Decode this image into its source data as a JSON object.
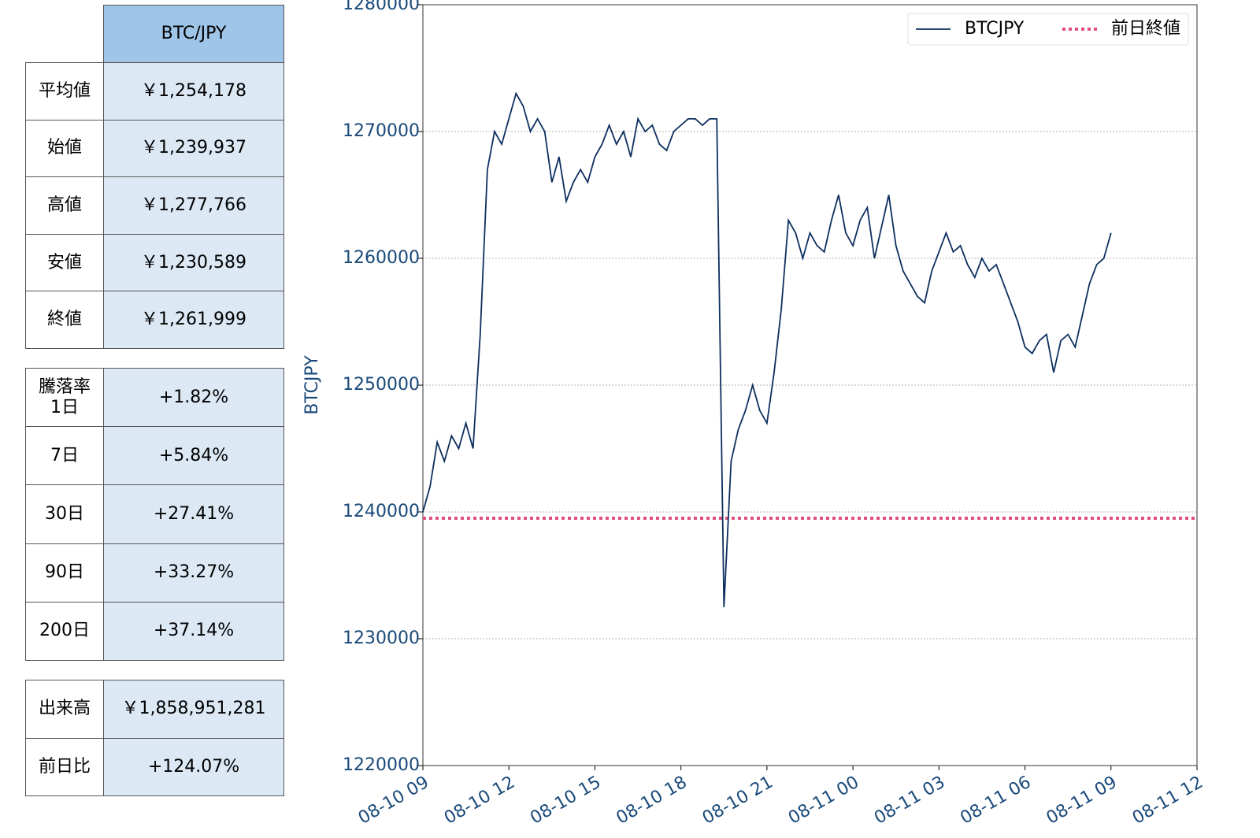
{
  "tables": [
    {
      "header": "BTC/JPY",
      "rows": [
        [
          "平均値",
          "￥1,254,178"
        ],
        [
          "始値",
          "￥1,239,937"
        ],
        [
          "高値",
          "￥1,277,766"
        ],
        [
          "安値",
          "￥1,230,589"
        ],
        [
          "終値",
          "￥1,261,999"
        ]
      ]
    },
    {
      "rows": [
        [
          "騰落率\n1日",
          "+1.82%"
        ],
        [
          "7日",
          "+5.84%"
        ],
        [
          "30日",
          "+27.41%"
        ],
        [
          "90日",
          "+33.27%"
        ],
        [
          "200日",
          "+37.14%"
        ]
      ]
    },
    {
      "rows": [
        [
          "出来高",
          "￥1,858,951,281"
        ],
        [
          "前日比",
          "+124.07%"
        ]
      ]
    }
  ],
  "chart_data": {
    "type": "line",
    "y_label": "BTCJPY",
    "x": [
      "08-10 09:00",
      "08-10 09:15",
      "08-10 09:30",
      "08-10 09:45",
      "08-10 10:00",
      "08-10 10:15",
      "08-10 10:30",
      "08-10 10:45",
      "08-10 11:00",
      "08-10 11:15",
      "08-10 11:30",
      "08-10 11:45",
      "08-10 12:00",
      "08-10 12:15",
      "08-10 12:30",
      "08-10 12:45",
      "08-10 13:00",
      "08-10 13:15",
      "08-10 13:30",
      "08-10 13:45",
      "08-10 14:00",
      "08-10 14:15",
      "08-10 14:30",
      "08-10 14:45",
      "08-10 15:00",
      "08-10 15:15",
      "08-10 15:30",
      "08-10 15:45",
      "08-10 16:00",
      "08-10 16:15",
      "08-10 16:30",
      "08-10 16:45",
      "08-10 17:00",
      "08-10 17:15",
      "08-10 17:30",
      "08-10 17:45",
      "08-10 18:00",
      "08-10 18:15",
      "08-10 18:30",
      "08-10 18:45",
      "08-10 19:00",
      "08-10 19:15",
      "08-10 19:30",
      "08-10 19:45",
      "08-10 20:00",
      "08-10 20:15",
      "08-10 20:30",
      "08-10 20:45",
      "08-10 21:00",
      "08-10 21:15",
      "08-10 21:30",
      "08-10 21:45",
      "08-10 22:00",
      "08-10 22:15",
      "08-10 22:30",
      "08-10 22:45",
      "08-10 23:00",
      "08-10 23:15",
      "08-10 23:30",
      "08-10 23:45",
      "08-11 00:00",
      "08-11 00:15",
      "08-11 00:30",
      "08-11 00:45",
      "08-11 01:00",
      "08-11 01:15",
      "08-11 01:30",
      "08-11 01:45",
      "08-11 02:00",
      "08-11 02:15",
      "08-11 02:30",
      "08-11 02:45",
      "08-11 03:00",
      "08-11 03:15",
      "08-11 03:30",
      "08-11 03:45",
      "08-11 04:00",
      "08-11 04:15",
      "08-11 04:30",
      "08-11 04:45",
      "08-11 05:00",
      "08-11 05:15",
      "08-11 05:30",
      "08-11 05:45",
      "08-11 06:00",
      "08-11 06:15",
      "08-11 06:30",
      "08-11 06:45",
      "08-11 07:00",
      "08-11 07:15",
      "08-11 07:30",
      "08-11 07:45",
      "08-11 08:00",
      "08-11 08:15",
      "08-11 08:30",
      "08-11 08:45",
      "08-11 09:00"
    ],
    "series": [
      {
        "name": "BTCJPY",
        "color": "#0d2f5e",
        "values": [
          1240000,
          1242000,
          1245500,
          1244000,
          1246000,
          1245000,
          1247000,
          1245000,
          1254000,
          1267000,
          1270000,
          1269000,
          1271000,
          1273000,
          1272000,
          1270000,
          1271000,
          1270000,
          1266000,
          1268000,
          1264500,
          1266000,
          1267000,
          1266000,
          1268000,
          1269000,
          1270500,
          1269000,
          1270000,
          1268000,
          1271000,
          1270000,
          1270500,
          1269000,
          1268500,
          1270000,
          1270500,
          1271000,
          1271000,
          1270500,
          1271000,
          1271000,
          1232500,
          1244000,
          1246500,
          1248000,
          1250000,
          1248000,
          1247000,
          1251000,
          1256000,
          1263000,
          1262000,
          1260000,
          1262000,
          1261000,
          1260500,
          1263000,
          1265000,
          1262000,
          1261000,
          1263000,
          1264000,
          1260000,
          1262500,
          1265000,
          1261000,
          1259000,
          1258000,
          1257000,
          1256500,
          1259000,
          1260500,
          1262000,
          1260500,
          1261000,
          1259500,
          1258500,
          1260000,
          1259000,
          1259500,
          1258000,
          1256500,
          1255000,
          1253000,
          1252500,
          1253500,
          1254000,
          1251000,
          1253500,
          1254000,
          1253000,
          1255500,
          1258000,
          1259500,
          1260000,
          1262000
        ]
      }
    ],
    "reference_line": {
      "name": "前日終値",
      "value": 1239500,
      "color": "#e0507a",
      "style": "dotted"
    },
    "xlim": [
      "08-10 09",
      "08-11 12"
    ],
    "xticks": [
      "08-10 09",
      "08-10 12",
      "08-10 15",
      "08-10 18",
      "08-10 21",
      "08-11 00",
      "08-11 03",
      "08-11 06",
      "08-11 09",
      "08-11 12"
    ],
    "ylim": [
      1220000,
      1280000
    ],
    "yticks": [
      1220000,
      1230000,
      1240000,
      1250000,
      1260000,
      1270000,
      1280000
    ],
    "grid": true,
    "legend": "upper right"
  }
}
